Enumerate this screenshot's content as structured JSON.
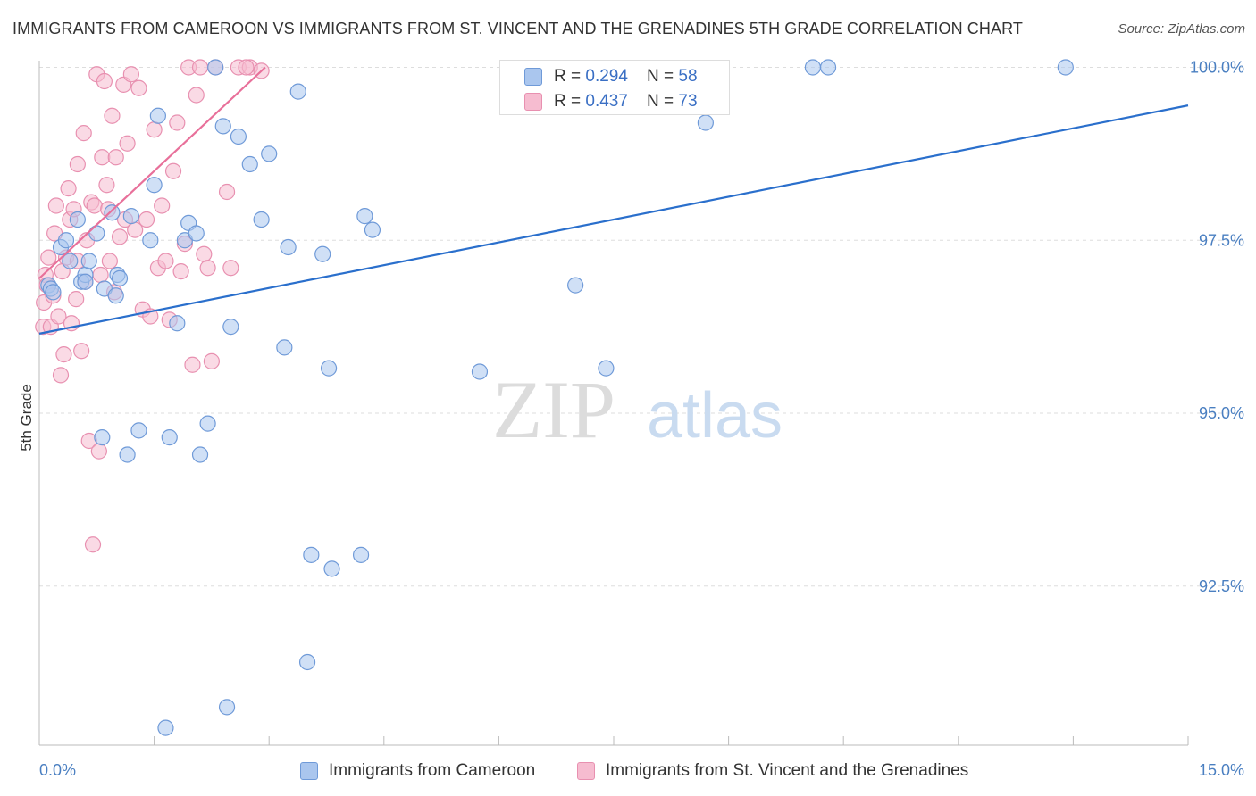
{
  "title": "IMMIGRANTS FROM CAMEROON VS IMMIGRANTS FROM ST. VINCENT AND THE GRENADINES 5TH GRADE CORRELATION CHART",
  "source": "Source: ZipAtlas.com",
  "watermark": {
    "zip": "ZIP",
    "atlas": "atlas"
  },
  "colors": {
    "blue_fill": "#aac6ee",
    "blue_stroke": "#6f9ad8",
    "blue_line": "#2a6fcc",
    "pink_fill": "#f6bcd0",
    "pink_stroke": "#e890b0",
    "pink_line": "#e8709a",
    "grid": "#dddddd",
    "tick_text": "#4a7fc1"
  },
  "legend": {
    "rows": [
      {
        "r_label": "R = ",
        "r_value": "0.294",
        "n_label": "N = ",
        "n_value": "58"
      },
      {
        "r_label": "R = ",
        "r_value": "0.437",
        "n_label": "N = ",
        "n_value": "73"
      }
    ]
  },
  "bottom_legend": [
    "Immigrants from Cameroon",
    "Immigrants from St. Vincent and the Grenadines"
  ],
  "chart_data": {
    "type": "scatter",
    "title": "IMMIGRANTS FROM CAMEROON VS IMMIGRANTS FROM ST. VINCENT AND THE GRENADINES 5TH GRADE CORRELATION CHART",
    "xlabel": "",
    "ylabel": "5th Grade",
    "xlim": [
      0,
      15
    ],
    "ylim": [
      90.2,
      100.2
    ],
    "x_tick_labels": [
      "0.0%",
      "15.0%"
    ],
    "y_ticks": [
      92.5,
      95.0,
      97.5,
      100.0
    ],
    "y_tick_labels": [
      "92.5%",
      "95.0%",
      "97.5%",
      "100.0%"
    ],
    "series": [
      {
        "name": "Immigrants from Cameroon",
        "R": 0.294,
        "N": 58,
        "trend": {
          "x": [
            0.0,
            15.0
          ],
          "y": [
            96.15,
            99.45
          ]
        },
        "points": [
          [
            0.12,
            96.85
          ],
          [
            0.15,
            96.8
          ],
          [
            0.18,
            96.75
          ],
          [
            0.28,
            97.4
          ],
          [
            0.35,
            97.5
          ],
          [
            0.5,
            97.8
          ],
          [
            0.55,
            96.9
          ],
          [
            0.6,
            97.0
          ],
          [
            0.65,
            97.2
          ],
          [
            0.75,
            97.6
          ],
          [
            0.82,
            94.65
          ],
          [
            0.85,
            96.8
          ],
          [
            0.95,
            97.9
          ],
          [
            1.0,
            96.7
          ],
          [
            1.02,
            97.0
          ],
          [
            1.05,
            96.95
          ],
          [
            1.15,
            94.4
          ],
          [
            1.2,
            97.85
          ],
          [
            1.3,
            94.75
          ],
          [
            1.45,
            97.5
          ],
          [
            1.5,
            98.3
          ],
          [
            1.55,
            99.3
          ],
          [
            1.65,
            90.45
          ],
          [
            1.7,
            94.65
          ],
          [
            1.8,
            96.3
          ],
          [
            1.9,
            97.5
          ],
          [
            1.95,
            97.75
          ],
          [
            2.05,
            97.6
          ],
          [
            2.1,
            94.4
          ],
          [
            2.2,
            94.85
          ],
          [
            2.3,
            100.0
          ],
          [
            2.4,
            99.15
          ],
          [
            2.45,
            90.75
          ],
          [
            2.5,
            96.25
          ],
          [
            2.6,
            99.0
          ],
          [
            2.75,
            98.6
          ],
          [
            2.9,
            97.8
          ],
          [
            3.0,
            98.75
          ],
          [
            3.2,
            95.95
          ],
          [
            3.25,
            97.4
          ],
          [
            3.38,
            99.65
          ],
          [
            3.5,
            91.4
          ],
          [
            3.55,
            92.95
          ],
          [
            3.7,
            97.3
          ],
          [
            3.78,
            95.65
          ],
          [
            3.82,
            92.75
          ],
          [
            4.2,
            92.95
          ],
          [
            4.25,
            97.85
          ],
          [
            4.35,
            97.65
          ],
          [
            5.75,
            95.6
          ],
          [
            7.0,
            96.85
          ],
          [
            7.4,
            95.65
          ],
          [
            8.7,
            99.2
          ],
          [
            10.1,
            100.0
          ],
          [
            10.3,
            100.0
          ],
          [
            13.4,
            100.0
          ],
          [
            0.4,
            97.2
          ],
          [
            0.6,
            96.9
          ]
        ]
      },
      {
        "name": "Immigrants from St. Vincent and the Grenadines",
        "R": 0.437,
        "N": 73,
        "trend": {
          "x": [
            0.0,
            2.95
          ],
          "y": [
            96.95,
            100.0
          ]
        },
        "points": [
          [
            0.05,
            96.25
          ],
          [
            0.06,
            96.6
          ],
          [
            0.08,
            97.0
          ],
          [
            0.1,
            96.85
          ],
          [
            0.12,
            97.25
          ],
          [
            0.15,
            96.25
          ],
          [
            0.18,
            96.7
          ],
          [
            0.2,
            97.6
          ],
          [
            0.22,
            98.0
          ],
          [
            0.25,
            96.4
          ],
          [
            0.28,
            95.55
          ],
          [
            0.3,
            97.05
          ],
          [
            0.32,
            95.85
          ],
          [
            0.35,
            97.25
          ],
          [
            0.38,
            98.25
          ],
          [
            0.4,
            97.8
          ],
          [
            0.42,
            96.3
          ],
          [
            0.45,
            97.95
          ],
          [
            0.48,
            96.65
          ],
          [
            0.5,
            97.2
          ],
          [
            0.5,
            98.6
          ],
          [
            0.55,
            95.9
          ],
          [
            0.58,
            99.05
          ],
          [
            0.6,
            96.9
          ],
          [
            0.62,
            97.5
          ],
          [
            0.65,
            94.6
          ],
          [
            0.68,
            98.05
          ],
          [
            0.7,
            93.1
          ],
          [
            0.72,
            98.0
          ],
          [
            0.75,
            99.9
          ],
          [
            0.78,
            94.45
          ],
          [
            0.8,
            97.0
          ],
          [
            0.82,
            98.7
          ],
          [
            0.85,
            99.8
          ],
          [
            0.88,
            98.3
          ],
          [
            0.9,
            97.95
          ],
          [
            0.92,
            97.2
          ],
          [
            0.95,
            99.3
          ],
          [
            0.98,
            96.75
          ],
          [
            1.0,
            98.7
          ],
          [
            1.05,
            97.55
          ],
          [
            1.1,
            99.75
          ],
          [
            1.12,
            97.8
          ],
          [
            1.15,
            98.9
          ],
          [
            1.2,
            99.9
          ],
          [
            1.25,
            97.65
          ],
          [
            1.3,
            99.7
          ],
          [
            1.35,
            96.5
          ],
          [
            1.4,
            97.8
          ],
          [
            1.45,
            96.4
          ],
          [
            1.5,
            99.1
          ],
          [
            1.55,
            97.1
          ],
          [
            1.6,
            98.0
          ],
          [
            1.65,
            97.2
          ],
          [
            1.7,
            96.35
          ],
          [
            1.75,
            98.5
          ],
          [
            1.8,
            99.2
          ],
          [
            1.85,
            97.05
          ],
          [
            1.9,
            97.45
          ],
          [
            1.95,
            100.0
          ],
          [
            2.0,
            95.7
          ],
          [
            2.05,
            99.6
          ],
          [
            2.1,
            100.0
          ],
          [
            2.15,
            97.3
          ],
          [
            2.2,
            97.1
          ],
          [
            2.25,
            95.75
          ],
          [
            2.3,
            100.0
          ],
          [
            2.45,
            98.2
          ],
          [
            2.5,
            97.1
          ],
          [
            2.6,
            100.0
          ],
          [
            2.75,
            100.0
          ],
          [
            2.9,
            99.95
          ],
          [
            2.7,
            100.0
          ]
        ]
      }
    ]
  }
}
